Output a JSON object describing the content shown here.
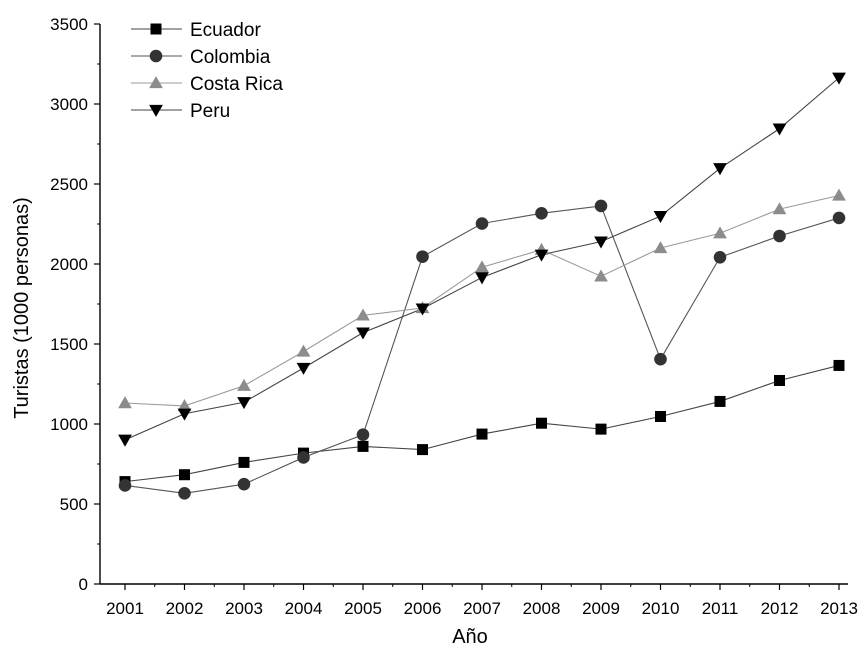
{
  "chart_data": {
    "type": "line",
    "title": "",
    "xlabel": "Año",
    "ylabel": "Turistas (1000 personas)",
    "xlim": [
      2001,
      2013
    ],
    "ylim": [
      0,
      3500
    ],
    "categories": [
      "2001",
      "2002",
      "2003",
      "2004",
      "2005",
      "2006",
      "2007",
      "2008",
      "2009",
      "2010",
      "2011",
      "2012",
      "2013"
    ],
    "yticks": [
      "0",
      "500",
      "1000",
      "1500",
      "2000",
      "2500",
      "3000",
      "3500"
    ],
    "grid": false,
    "legend_position": "top-left",
    "series": [
      {
        "name": "Ecuador",
        "marker": "square",
        "color": "#000000",
        "line_color": "#444444",
        "values": [
          640,
          683,
          760,
          818,
          860,
          840,
          937,
          1005,
          968,
          1047,
          1141,
          1272,
          1366
        ]
      },
      {
        "name": "Colombia",
        "marker": "circle",
        "color": "#333333",
        "line_color": "#555555",
        "values": [
          616,
          567,
          624,
          791,
          933,
          2046,
          2253,
          2317,
          2363,
          1405,
          2042,
          2175,
          2288
        ]
      },
      {
        "name": "Costa Rica",
        "marker": "triangle-up",
        "color": "#8c8c8c",
        "line_color": "#9a9a9a",
        "values": [
          1131,
          1113,
          1239,
          1453,
          1679,
          1725,
          1980,
          2089,
          1923,
          2100,
          2192,
          2343,
          2428
        ]
      },
      {
        "name": "Peru",
        "marker": "triangle-down",
        "color": "#000000",
        "line_color": "#444444",
        "values": [
          901,
          1064,
          1136,
          1350,
          1571,
          1721,
          1916,
          2058,
          2140,
          2299,
          2598,
          2846,
          3164
        ]
      }
    ]
  }
}
